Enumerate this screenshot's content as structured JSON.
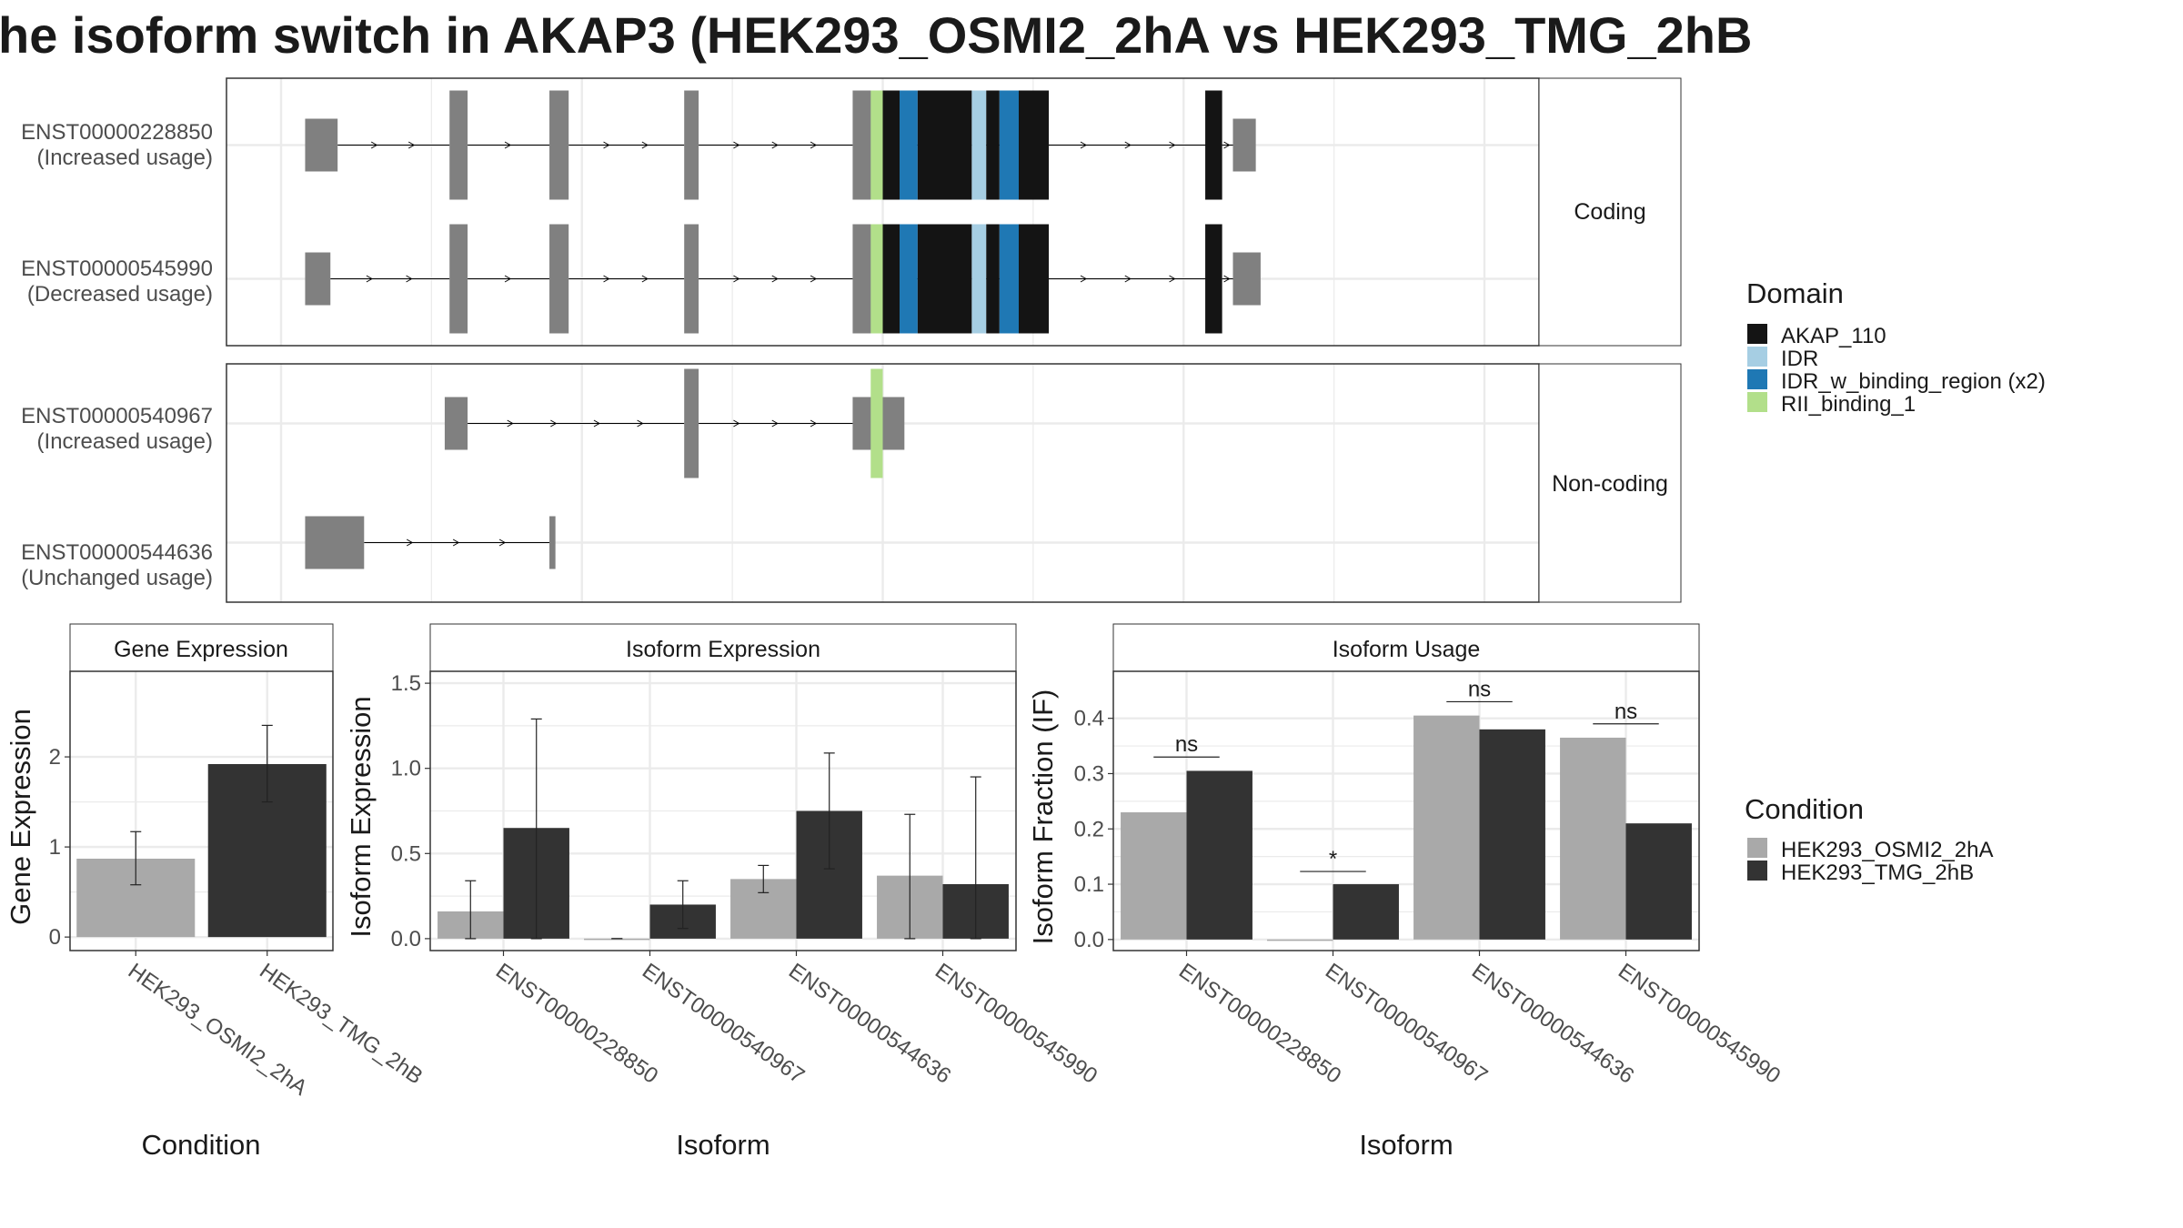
{
  "title": "he isoform switch in AKAP3 (HEK293_OSMI2_2hA vs HEK293_TMG_2hB",
  "colors": {
    "panel_border": "#333333",
    "grid": "#ebebeb",
    "exon": "#808080",
    "cond_a": "#a9a9a9",
    "cond_b": "#333333"
  },
  "structure": {
    "facets": [
      "Coding",
      "Non-coding"
    ],
    "x_range": [
      0,
      100
    ],
    "transcripts": [
      {
        "facet": 0,
        "slot": 0,
        "id": "ENST00000228850",
        "usage": "(Increased usage)",
        "exons": [
          [
            2.0,
            4.7
          ],
          [
            14.0,
            15.5
          ],
          [
            22.3,
            23.9
          ],
          [
            33.5,
            34.7
          ],
          [
            47.5,
            52.0
          ],
          [
            77.8,
            78.2
          ],
          [
            79.1,
            81.0
          ]
        ],
        "domains": [
          [
            49.0,
            50.0,
            3
          ],
          [
            50.0,
            51.4,
            0
          ],
          [
            51.4,
            52.9,
            2
          ],
          [
            52.9,
            57.4,
            0
          ],
          [
            57.4,
            58.6,
            1
          ],
          [
            58.6,
            59.7,
            0
          ],
          [
            59.7,
            61.3,
            2
          ],
          [
            61.3,
            63.8,
            0
          ],
          [
            76.8,
            78.2,
            0
          ]
        ]
      },
      {
        "facet": 0,
        "slot": 1,
        "id": "ENST00000545990",
        "usage": "(Decreased usage)",
        "exons": [
          [
            2.0,
            4.1
          ],
          [
            14.0,
            15.5
          ],
          [
            22.3,
            23.9
          ],
          [
            33.5,
            34.7
          ],
          [
            47.5,
            52.0
          ],
          [
            77.8,
            78.2
          ],
          [
            79.1,
            81.4
          ]
        ],
        "domains": [
          [
            49.0,
            50.0,
            3
          ],
          [
            50.0,
            51.4,
            0
          ],
          [
            51.4,
            52.9,
            2
          ],
          [
            52.9,
            57.4,
            0
          ],
          [
            57.4,
            58.6,
            1
          ],
          [
            58.6,
            59.7,
            0
          ],
          [
            59.7,
            61.3,
            2
          ],
          [
            61.3,
            63.8,
            0
          ],
          [
            76.8,
            78.2,
            0
          ]
        ]
      },
      {
        "facet": 1,
        "slot": 0,
        "id": "ENST00000540967",
        "usage": "(Increased usage)",
        "exons": [
          [
            13.6,
            15.5
          ],
          [
            33.5,
            34.7
          ],
          [
            47.5,
            51.8
          ]
        ],
        "domains": [
          [
            49.0,
            50.0,
            3
          ]
        ]
      },
      {
        "facet": 1,
        "slot": 1,
        "id": "ENST00000544636",
        "usage": "(Unchanged usage)",
        "exons": [
          [
            2.0,
            6.9
          ],
          [
            22.3,
            22.8
          ]
        ],
        "domains": []
      }
    ]
  },
  "domain_legend": {
    "title": "Domain",
    "items": [
      {
        "label": "AKAP_110",
        "color": "#141414"
      },
      {
        "label": "IDR",
        "color": "#a6cee3"
      },
      {
        "label": "IDR_w_binding_region (x2)",
        "color": "#1f78b4"
      },
      {
        "label": "RII_binding_1",
        "color": "#b2df8a"
      }
    ]
  },
  "condition_legend": {
    "title": "Condition",
    "items": [
      {
        "label": "HEK293_OSMI2_2hA",
        "color": "#a9a9a9"
      },
      {
        "label": "HEK293_TMG_2hB",
        "color": "#333333"
      }
    ]
  },
  "chart_data": [
    {
      "type": "bar",
      "title": "Gene Expression",
      "xlabel": "Condition",
      "ylabel": "Gene Expression",
      "ylim": [
        -0.15,
        2.95
      ],
      "yticks": [
        0,
        1,
        2
      ],
      "categories": [
        "HEK293_OSMI2_2hA",
        "HEK293_TMG_2hB"
      ],
      "values": [
        0.87,
        1.92
      ],
      "err_low": [
        0.58,
        1.5
      ],
      "err_high": [
        1.17,
        2.35
      ]
    },
    {
      "type": "bar",
      "title": "Isoform Expression",
      "xlabel": "Isoform",
      "ylabel": "Isoform Expression",
      "ylim": [
        -0.07,
        1.57
      ],
      "yticks": [
        0.0,
        0.5,
        1.0,
        1.5
      ],
      "categories": [
        "ENST00000228850",
        "ENST00000540967",
        "ENST00000544636",
        "ENST00000545990"
      ],
      "series": [
        {
          "name": "HEK293_OSMI2_2hA",
          "values": [
            0.16,
            0.0,
            0.35,
            0.37
          ],
          "err_low": [
            0.0,
            0.0,
            0.27,
            0.0
          ],
          "err_high": [
            0.34,
            0.0,
            0.43,
            0.73
          ]
        },
        {
          "name": "HEK293_TMG_2hB",
          "values": [
            0.65,
            0.2,
            0.75,
            0.32
          ],
          "err_low": [
            0.0,
            0.06,
            0.41,
            0.0
          ],
          "err_high": [
            1.29,
            0.34,
            1.09,
            0.95
          ]
        }
      ]
    },
    {
      "type": "bar",
      "title": "Isoform Usage",
      "xlabel": "Isoform",
      "ylabel": "Isoform Fraction (IF)",
      "ylim": [
        -0.02,
        0.485
      ],
      "yticks": [
        0.0,
        0.1,
        0.2,
        0.3,
        0.4
      ],
      "categories": [
        "ENST00000228850",
        "ENST00000540967",
        "ENST00000544636",
        "ENST00000545990"
      ],
      "series": [
        {
          "name": "HEK293_OSMI2_2hA",
          "values": [
            0.23,
            0.0,
            0.405,
            0.365
          ]
        },
        {
          "name": "HEK293_TMG_2hB",
          "values": [
            0.305,
            0.1,
            0.38,
            0.21
          ]
        }
      ],
      "significance": [
        {
          "label": "ns",
          "y": 0.33
        },
        {
          "label": "*",
          "y": 0.123
        },
        {
          "label": "ns",
          "y": 0.43
        },
        {
          "label": "ns",
          "y": 0.39
        }
      ]
    }
  ]
}
